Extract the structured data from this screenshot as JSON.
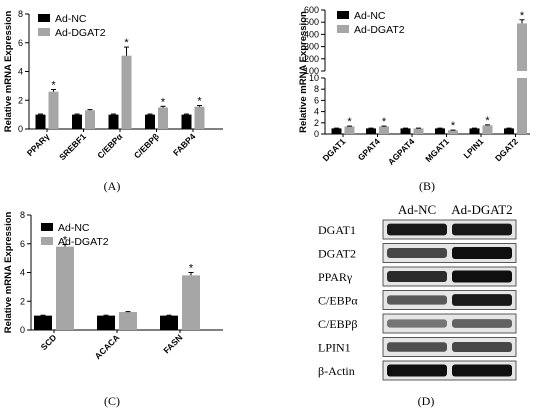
{
  "chart_data": [
    {
      "type": "bar",
      "panel_label": "(A)",
      "ylabel": "Relative mRNA Expression",
      "ylim": [
        0,
        8
      ],
      "yticks": [
        0,
        2,
        4,
        6,
        8
      ],
      "categories": [
        "PPARγ",
        "SREBF1",
        "C/EBPα",
        "C/EBPβ",
        "FABP4"
      ],
      "series": [
        {
          "name": "Ad-NC",
          "values": [
            1.0,
            1.0,
            1.0,
            1.0,
            1.0
          ],
          "errors": [
            0.04,
            0.04,
            0.04,
            0.04,
            0.04
          ],
          "color": "#000000"
        },
        {
          "name": "Ad-DGAT2",
          "values": [
            2.6,
            1.3,
            5.1,
            1.5,
            1.55
          ],
          "errors": [
            0.15,
            0.05,
            0.6,
            0.08,
            0.08
          ],
          "color": "#a6a6a6"
        }
      ],
      "significance": [
        "*",
        "",
        "*",
        "*",
        "*"
      ],
      "legend": "top-left"
    },
    {
      "type": "bar",
      "panel_label": "(B)",
      "ylabel": "Relative mRNA Expression",
      "axis_break": true,
      "ylim": [
        0,
        600
      ],
      "yticks_lower": [
        0,
        2,
        4,
        6,
        8,
        10
      ],
      "yticks_upper": [
        100,
        200,
        300,
        400,
        500,
        600
      ],
      "categories": [
        "DGAT1",
        "GPAT4",
        "AGPAT4",
        "MGAT1",
        "LPIN1",
        "DGAT2"
      ],
      "series": [
        {
          "name": "Ad-NC",
          "values": [
            1.0,
            1.0,
            1.0,
            1.0,
            1.0,
            1.0
          ],
          "errors": [
            0.05,
            0.05,
            0.05,
            0.05,
            0.05,
            0.05
          ],
          "color": "#000000"
        },
        {
          "name": "Ad-DGAT2",
          "values": [
            1.35,
            1.35,
            1.0,
            0.65,
            1.55,
            490
          ],
          "errors": [
            0.06,
            0.06,
            0.05,
            0.05,
            0.08,
            30
          ],
          "color": "#a6a6a6"
        }
      ],
      "significance": [
        "*",
        "*",
        "",
        "*",
        "*",
        "*"
      ],
      "legend": "top-left"
    },
    {
      "type": "bar",
      "panel_label": "(C)",
      "ylabel": "Relative mRNA Expression",
      "ylim": [
        0,
        8
      ],
      "yticks": [
        0,
        2,
        4,
        6,
        8
      ],
      "categories": [
        "SCD",
        "ACACA",
        "FASN"
      ],
      "series": [
        {
          "name": "Ad-NC",
          "values": [
            1.0,
            1.0,
            1.0
          ],
          "errors": [
            0.03,
            0.03,
            0.03
          ],
          "color": "#000000"
        },
        {
          "name": "Ad-DGAT2",
          "values": [
            5.8,
            1.25,
            3.8
          ],
          "errors": [
            0.15,
            0.03,
            0.2
          ],
          "color": "#a6a6a6"
        }
      ],
      "significance": [
        "*",
        "",
        "*"
      ],
      "legend": "top-left"
    }
  ],
  "blot": {
    "panel_label": "(D)",
    "columns": [
      "Ad-NC",
      "Ad-DGAT2"
    ],
    "rows": [
      {
        "name": "DGAT1",
        "left": 0.95,
        "right": 0.95
      },
      {
        "name": "DGAT2",
        "left": 0.7,
        "right": 1.0
      },
      {
        "name": "PPARγ",
        "left": 0.85,
        "right": 1.0
      },
      {
        "name": "C/EBPα",
        "left": 0.6,
        "right": 0.95
      },
      {
        "name": "C/EBPβ",
        "left": 0.45,
        "right": 0.55
      },
      {
        "name": "LPIN1",
        "left": 0.65,
        "right": 0.7
      },
      {
        "name": "β-Actin",
        "left": 1.0,
        "right": 1.0
      }
    ]
  }
}
